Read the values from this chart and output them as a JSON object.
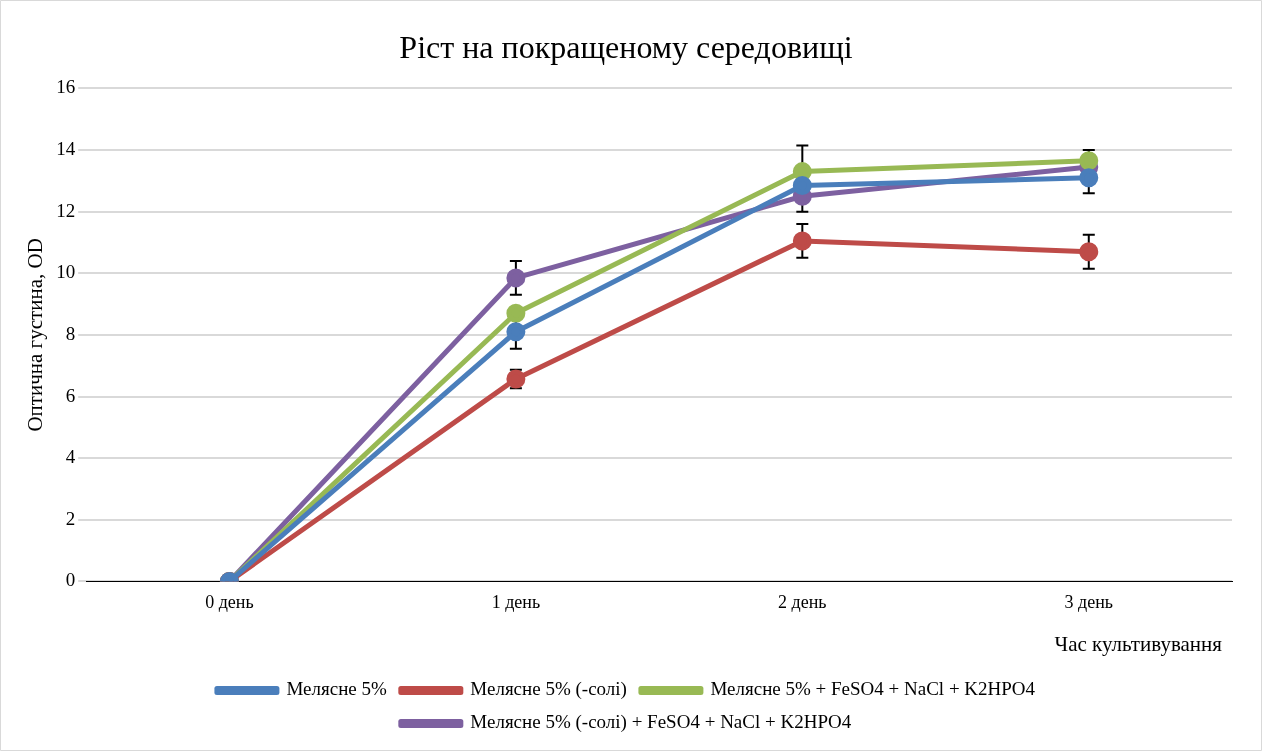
{
  "chart_data": {
    "type": "line",
    "title": "Ріст на покращеному середовищі",
    "xlabel": "Час культивування",
    "ylabel": "Оптична густина, OD",
    "categories": [
      "0 день",
      "1 день",
      "2 день",
      "3 день"
    ],
    "series": [
      {
        "name": "Мелясне 5%",
        "color": "#4a7ebb",
        "values": [
          0,
          8.1,
          12.85,
          13.1
        ],
        "errors": [
          null,
          0.55,
          null,
          0.5
        ]
      },
      {
        "name": "Мелясне 5% (-солі)",
        "color": "#be4b48",
        "values": [
          0,
          6.57,
          11.05,
          10.7
        ],
        "errors": [
          null,
          0.3,
          0.55,
          0.55
        ]
      },
      {
        "name": "Мелясне 5% + FeSO4 + NaCl + K2HPO4",
        "color": "#98b954",
        "values": [
          0,
          8.7,
          13.3,
          13.65
        ],
        "errors": [
          null,
          null,
          0.85,
          0.35
        ]
      },
      {
        "name": "Мелясне 5% (-солі) + FeSO4 + NaCl + K2HPO4",
        "color": "#7d60a0",
        "values": [
          0,
          9.85,
          12.5,
          13.45
        ],
        "errors": [
          null,
          0.55,
          0.5,
          null
        ]
      }
    ],
    "ylim": [
      0,
      16
    ],
    "yticks": [
      0,
      2,
      4,
      6,
      8,
      10,
      12,
      14,
      16
    ],
    "grid": "y",
    "legend": "bottom",
    "marker": "circle",
    "line_style": "solid"
  }
}
